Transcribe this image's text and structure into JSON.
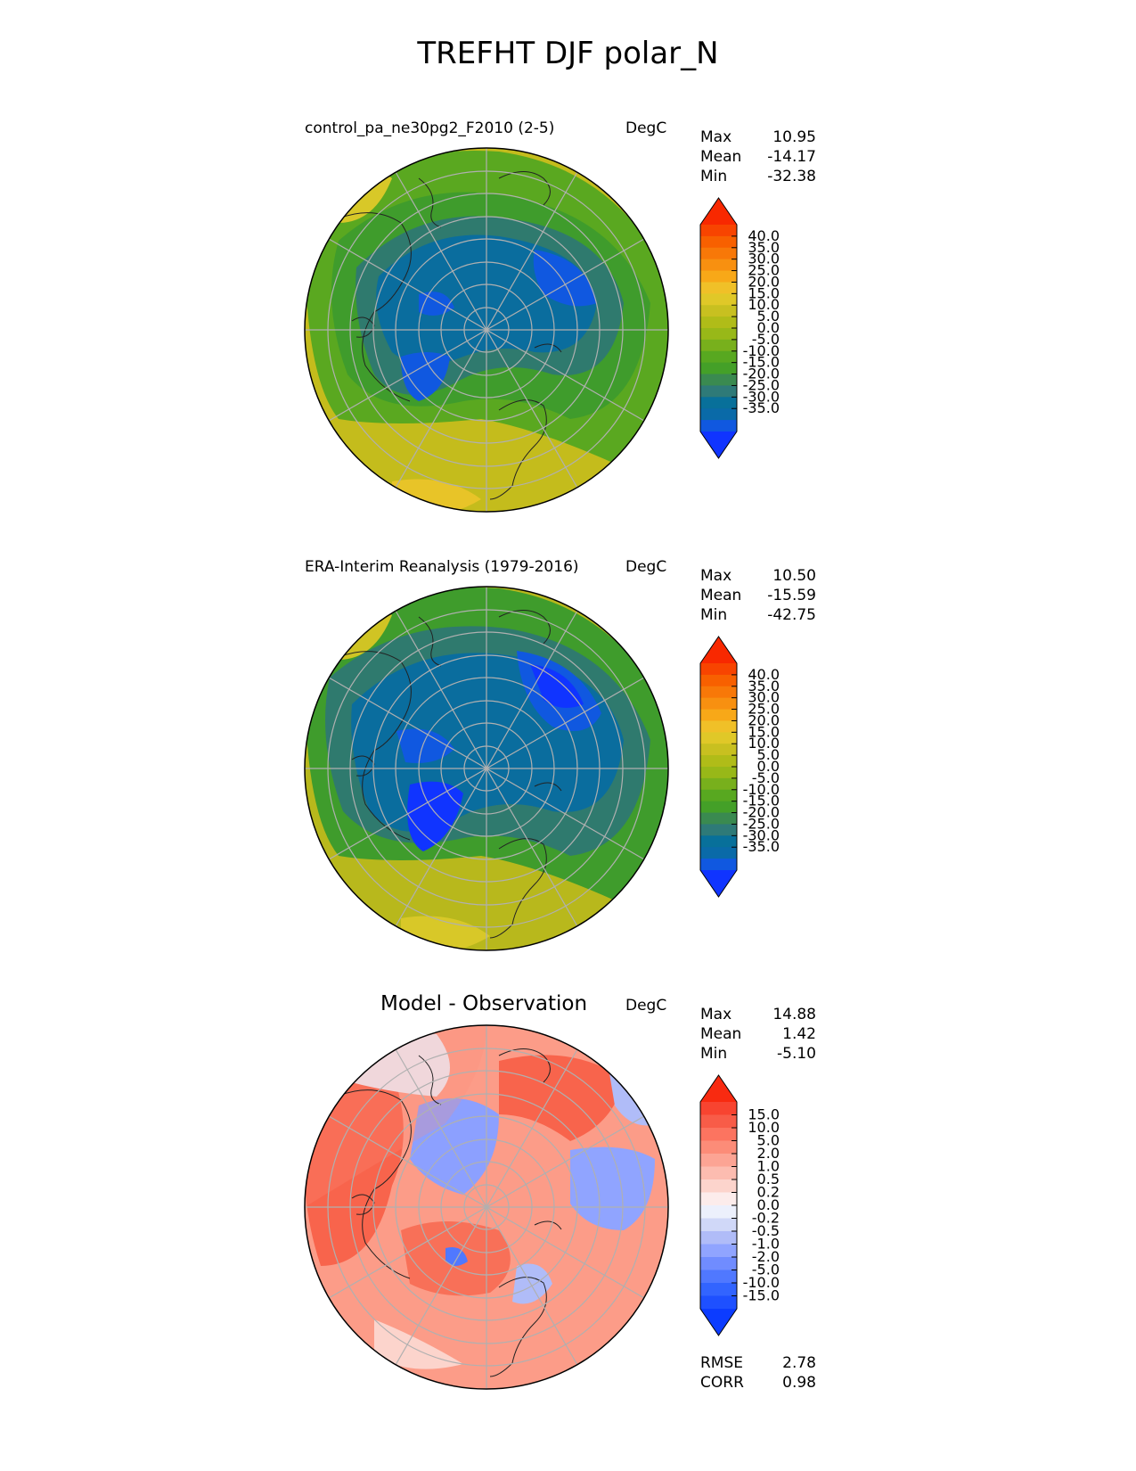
{
  "figure": {
    "title": "TREFHT DJF polar_N"
  },
  "panels": [
    {
      "id": "test",
      "title": "control_pa_ne30pg2_F2010 (2-5)",
      "units": "DegC",
      "stats": [
        {
          "label": "Max",
          "value": "10.95"
        },
        {
          "label": "Mean",
          "value": "-14.17"
        },
        {
          "label": "Min",
          "value": "-32.38"
        }
      ],
      "colorbar": {
        "colors": [
          "#1034ff",
          "#1058e0",
          "#0a6aa8",
          "#08709a",
          "#2e7a78",
          "#3a8a50",
          "#44a028",
          "#58a820",
          "#78b01c",
          "#98b818",
          "#b0bc18",
          "#c8c020",
          "#e0c828",
          "#f0c028",
          "#f8a818",
          "#f89010",
          "#f87808",
          "#f86000",
          "#f84400",
          "#f82800"
        ],
        "tick_labels": [
          "40.0",
          "35.0",
          "30.0",
          "25.0",
          "20.0",
          "15.0",
          "10.0",
          "5.0",
          "0.0",
          "-5.0",
          "-10.0",
          "-15.0",
          "-20.0",
          "-25.0",
          "-30.0",
          "-35.0"
        ]
      }
    },
    {
      "id": "reference",
      "title": "ERA-Interim Reanalysis (1979-2016)",
      "units": "DegC",
      "stats": [
        {
          "label": "Max",
          "value": "10.50"
        },
        {
          "label": "Mean",
          "value": "-15.59"
        },
        {
          "label": "Min",
          "value": "-42.75"
        }
      ],
      "colorbar": {
        "colors": [
          "#1034ff",
          "#1058e0",
          "#0a6aa8",
          "#08709a",
          "#2e7a78",
          "#3a8a50",
          "#44a028",
          "#58a820",
          "#78b01c",
          "#98b818",
          "#b0bc18",
          "#c8c020",
          "#e0c828",
          "#f0c028",
          "#f8a818",
          "#f89010",
          "#f87808",
          "#f86000",
          "#f84400",
          "#f82800"
        ],
        "tick_labels": [
          "40.0",
          "35.0",
          "30.0",
          "25.0",
          "20.0",
          "15.0",
          "10.0",
          "5.0",
          "0.0",
          "-5.0",
          "-10.0",
          "-15.0",
          "-20.0",
          "-25.0",
          "-30.0",
          "-35.0"
        ]
      }
    },
    {
      "id": "diff",
      "title": "Model - Observation",
      "units": "DegC",
      "stats": [
        {
          "label": "Max",
          "value": "14.88"
        },
        {
          "label": "Mean",
          "value": "1.42"
        },
        {
          "label": "Min",
          "value": "-5.10"
        }
      ],
      "extra_stats": [
        {
          "label": "RMSE",
          "value": "2.78"
        },
        {
          "label": "CORR",
          "value": "0.98"
        }
      ],
      "colorbar": {
        "colors": [
          "#0c3cff",
          "#1e50ff",
          "#3264ff",
          "#5078ff",
          "#708cff",
          "#90a4ff",
          "#b0bcf8",
          "#d0d8f8",
          "#ecf0fc",
          "#fceceb",
          "#fcd4cc",
          "#fcbcb0",
          "#fca494",
          "#fc8c78",
          "#fc7460",
          "#f85c48",
          "#f84430",
          "#f82a10"
        ],
        "tick_labels": [
          "15.0",
          "10.0",
          "5.0",
          "2.0",
          "1.0",
          "0.5",
          "0.2",
          "0.0",
          "-0.2",
          "-0.5",
          "-1.0",
          "-2.0",
          "-5.0",
          "-10.0",
          "-15.0"
        ]
      }
    }
  ]
}
